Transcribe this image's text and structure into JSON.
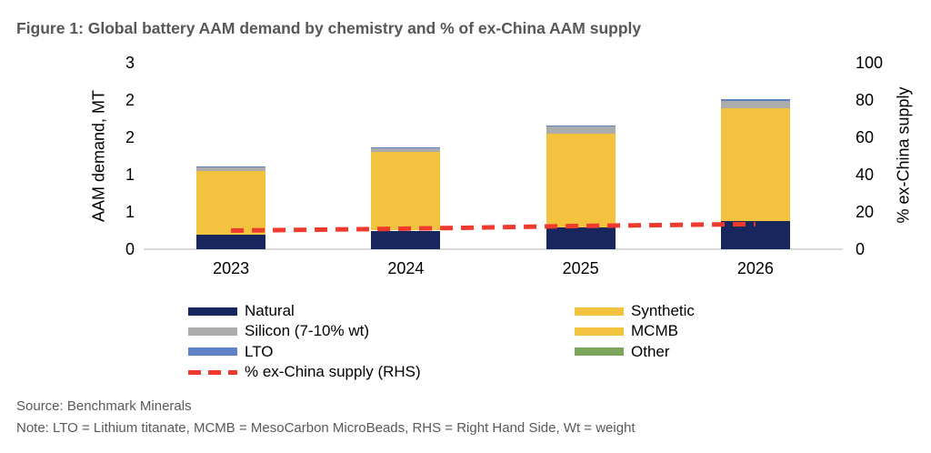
{
  "figure_title": "Figure 1: Global battery AAM demand by chemistry and % of ex-China AAM supply",
  "source_line": "Source: Benchmark Minerals",
  "note_line": "Note: LTO = Lithium titanate, MCMB = MesoCarbon MicroBeads, RHS = Right Hand Side, Wt = weight",
  "colors": {
    "natural": "#17265c",
    "synthetic": "#f3c340",
    "mcmb": "#f3c340",
    "silicon": "#acacac",
    "lto": "#5f82c6",
    "other": "#7ba55a",
    "line_red": "#ef3b2d",
    "baseline": "#d9d9d9",
    "title_gray": "#575757"
  },
  "chart_data": {
    "type": "bar",
    "subtype": "stacked-bars-with-line",
    "title": "Figure 1: Global battery AAM demand by chemistry and % of ex-China AAM supply",
    "categories": [
      "2023",
      "2024",
      "2025",
      "2026"
    ],
    "series": [
      {
        "name": "Natural",
        "color": "#17265c",
        "values": [
          0.24,
          0.3,
          0.35,
          0.46
        ]
      },
      {
        "name": "Synthetic",
        "color": "#f3c340",
        "values": [
          1.02,
          1.26,
          1.51,
          1.81
        ]
      },
      {
        "name": "MCMB",
        "color": "#f3c340",
        "values": [
          0,
          0,
          0,
          0
        ]
      },
      {
        "name": "Silicon (7-10% wt)",
        "color": "#acacac",
        "values": [
          0.06,
          0.07,
          0.11,
          0.12
        ]
      },
      {
        "name": "LTO",
        "color": "#5f82c6",
        "values": [
          0.01,
          0.015,
          0.02,
          0.03
        ]
      },
      {
        "name": "Other",
        "color": "#7ba55a",
        "values": [
          0,
          0,
          0,
          0
        ]
      }
    ],
    "line_series": {
      "name": "% ex-China supply (RHS)",
      "color": "#ef3b2d",
      "axis": "right",
      "values": [
        10,
        11,
        12.5,
        13.5
      ]
    },
    "left_axis": {
      "title": "AAM demand, MT",
      "min": 0,
      "max": 3,
      "tick_labels": [
        "0",
        "1",
        "1",
        "2",
        "2",
        "3"
      ]
    },
    "right_axis": {
      "title": "% ex-China supply",
      "min": 0,
      "max": 100,
      "tick_labels": [
        "0",
        "20",
        "40",
        "60",
        "80",
        "100"
      ]
    },
    "grid": "off",
    "legend_position": "bottom-two-columns",
    "legend": {
      "left": [
        {
          "label": "Natural",
          "swatch": "#17265c",
          "type": "box"
        },
        {
          "label": "Silicon (7-10% wt)",
          "swatch": "#acacac",
          "type": "box"
        },
        {
          "label": "LTO",
          "swatch": "#5f82c6",
          "type": "box"
        },
        {
          "label": "% ex-China supply (RHS)",
          "swatch": "#ef3b2d",
          "type": "dash"
        }
      ],
      "right": [
        {
          "label": "Synthetic",
          "swatch": "#f3c340",
          "type": "box"
        },
        {
          "label": "MCMB",
          "swatch": "#f3c340",
          "type": "box"
        },
        {
          "label": "Other",
          "swatch": "#7ba55a",
          "type": "box"
        }
      ]
    }
  }
}
